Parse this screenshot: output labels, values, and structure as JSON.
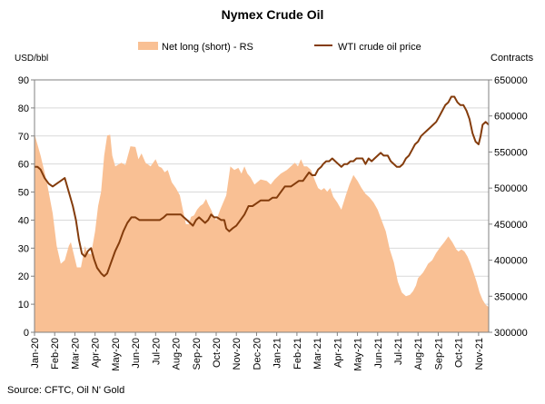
{
  "page": {
    "title": "Nymex Crude Oil",
    "source": "Source: CFTC, Oil N' Gold"
  },
  "chart_data": {
    "type": "area+line",
    "title": "Nymex Crude Oil",
    "ylabel_left": "USD/bbl",
    "ylabel_right": "Contracts",
    "ylim_left": [
      0,
      90
    ],
    "yticks_left": [
      0,
      10,
      20,
      30,
      40,
      50,
      60,
      70,
      80,
      90
    ],
    "ylim_right": [
      300000,
      650000
    ],
    "yticks_right": [
      300000,
      350000,
      400000,
      450000,
      500000,
      550000,
      600000,
      650000
    ],
    "x_ticks": [
      "Jan-20",
      "Feb-20",
      "Mar-20",
      "Apr-20",
      "May-20",
      "Jun-20",
      "Jul-20",
      "Aug-20",
      "Sep-20",
      "Oct-20",
      "Nov-20",
      "Dec-20",
      "Jan-21",
      "Feb-21",
      "Mar-21",
      "Apr-21",
      "May-21",
      "Jun-21",
      "Jul-21",
      "Aug-21",
      "Sep-21",
      "Oct-21",
      "Nov-21"
    ],
    "grid": true,
    "legend_position": "top",
    "series": [
      {
        "name": "Net long (short) - RS",
        "type": "area",
        "axis": "right",
        "color": "#f9c094",
        "points": [
          [
            0,
            575000
          ],
          [
            0.3,
            545000
          ],
          [
            0.6,
            510000
          ],
          [
            0.9,
            465000
          ],
          [
            1.1,
            420000
          ],
          [
            1.3,
            395000
          ],
          [
            1.5,
            400000
          ],
          [
            1.7,
            420000
          ],
          [
            1.8,
            425000
          ],
          [
            1.95,
            408000
          ],
          [
            2.1,
            390000
          ],
          [
            2.3,
            390000
          ],
          [
            2.5,
            420000
          ],
          [
            2.6,
            410000
          ],
          [
            2.8,
            408000
          ],
          [
            3.0,
            440000
          ],
          [
            3.15,
            475000
          ],
          [
            3.3,
            495000
          ],
          [
            3.45,
            545000
          ],
          [
            3.6,
            573000
          ],
          [
            3.75,
            574000
          ],
          [
            3.85,
            545000
          ],
          [
            4.0,
            530000
          ],
          [
            4.3,
            535000
          ],
          [
            4.5,
            532000
          ],
          [
            4.75,
            558000
          ],
          [
            5.0,
            557000
          ],
          [
            5.15,
            540000
          ],
          [
            5.3,
            548000
          ],
          [
            5.5,
            535000
          ],
          [
            5.75,
            530000
          ],
          [
            6.0,
            540000
          ],
          [
            6.15,
            530000
          ],
          [
            6.3,
            528000
          ],
          [
            6.45,
            522000
          ],
          [
            6.6,
            525000
          ],
          [
            6.8,
            508000
          ],
          [
            7.0,
            500000
          ],
          [
            7.2,
            490000
          ],
          [
            7.35,
            470000
          ],
          [
            7.5,
            450000
          ],
          [
            7.65,
            450000
          ],
          [
            7.75,
            460000
          ],
          [
            7.9,
            462000
          ],
          [
            8.05,
            470000
          ],
          [
            8.2,
            475000
          ],
          [
            8.35,
            478000
          ],
          [
            8.5,
            485000
          ],
          [
            8.6,
            478000
          ],
          [
            8.75,
            470000
          ],
          [
            8.9,
            460000
          ],
          [
            9.0,
            455000
          ],
          [
            9.2,
            470000
          ],
          [
            9.5,
            490000
          ],
          [
            9.7,
            530000
          ],
          [
            9.9,
            525000
          ],
          [
            10.1,
            528000
          ],
          [
            10.25,
            520000
          ],
          [
            10.4,
            530000
          ],
          [
            10.55,
            520000
          ],
          [
            10.7,
            515000
          ],
          [
            10.9,
            505000
          ],
          [
            11.2,
            512000
          ],
          [
            11.5,
            510000
          ],
          [
            11.7,
            505000
          ],
          [
            11.9,
            512000
          ],
          [
            12.2,
            520000
          ],
          [
            12.5,
            525000
          ],
          [
            12.7,
            530000
          ],
          [
            12.9,
            535000
          ],
          [
            13.05,
            530000
          ],
          [
            13.2,
            540000
          ],
          [
            13.35,
            530000
          ],
          [
            13.5,
            530000
          ],
          [
            13.7,
            525000
          ],
          [
            13.9,
            510000
          ],
          [
            14.05,
            500000
          ],
          [
            14.2,
            497000
          ],
          [
            14.35,
            500000
          ],
          [
            14.5,
            495000
          ],
          [
            14.65,
            500000
          ],
          [
            14.8,
            488000
          ],
          [
            15.0,
            480000
          ],
          [
            15.2,
            470000
          ],
          [
            15.4,
            488000
          ],
          [
            15.6,
            505000
          ],
          [
            15.8,
            518000
          ],
          [
            16.0,
            510000
          ],
          [
            16.2,
            500000
          ],
          [
            16.4,
            492000
          ],
          [
            16.6,
            487000
          ],
          [
            16.8,
            480000
          ],
          [
            17.0,
            470000
          ],
          [
            17.2,
            455000
          ],
          [
            17.4,
            440000
          ],
          [
            17.6,
            415000
          ],
          [
            17.8,
            397000
          ],
          [
            18.0,
            370000
          ],
          [
            18.2,
            355000
          ],
          [
            18.4,
            350000
          ],
          [
            18.6,
            352000
          ],
          [
            18.75,
            357000
          ],
          [
            18.9,
            365000
          ],
          [
            19.0,
            375000
          ],
          [
            19.1,
            378000
          ],
          [
            19.25,
            383000
          ],
          [
            19.4,
            390000
          ],
          [
            19.5,
            395000
          ],
          [
            19.7,
            400000
          ],
          [
            19.9,
            410000
          ],
          [
            20.1,
            418000
          ],
          [
            20.3,
            425000
          ],
          [
            20.5,
            433000
          ],
          [
            20.7,
            425000
          ],
          [
            20.9,
            415000
          ],
          [
            21.0,
            412000
          ],
          [
            21.15,
            415000
          ],
          [
            21.3,
            412000
          ],
          [
            21.45,
            405000
          ],
          [
            21.6,
            395000
          ],
          [
            21.75,
            383000
          ],
          [
            21.9,
            370000
          ],
          [
            22.05,
            355000
          ],
          [
            22.2,
            345000
          ],
          [
            22.35,
            338000
          ],
          [
            22.5,
            335000
          ]
        ]
      },
      {
        "name": "WTI crude oil price",
        "type": "line",
        "axis": "left",
        "color": "#843c0c",
        "points": [
          [
            0,
            59
          ],
          [
            0.15,
            59
          ],
          [
            0.3,
            58
          ],
          [
            0.5,
            55
          ],
          [
            0.7,
            53
          ],
          [
            0.9,
            52
          ],
          [
            1.1,
            53
          ],
          [
            1.3,
            54
          ],
          [
            1.5,
            55
          ],
          [
            1.7,
            50
          ],
          [
            1.9,
            45
          ],
          [
            2.05,
            40
          ],
          [
            2.2,
            33
          ],
          [
            2.35,
            28
          ],
          [
            2.5,
            27
          ],
          [
            2.65,
            29
          ],
          [
            2.8,
            30
          ],
          [
            2.95,
            26
          ],
          [
            3.1,
            23
          ],
          [
            3.3,
            21
          ],
          [
            3.45,
            20
          ],
          [
            3.6,
            21
          ],
          [
            3.8,
            25
          ],
          [
            4.0,
            29
          ],
          [
            4.2,
            32
          ],
          [
            4.4,
            36
          ],
          [
            4.6,
            39
          ],
          [
            4.8,
            41
          ],
          [
            5.0,
            41
          ],
          [
            5.2,
            40
          ],
          [
            5.35,
            40
          ],
          [
            5.5,
            40
          ],
          [
            5.7,
            40
          ],
          [
            5.9,
            40
          ],
          [
            6.05,
            40
          ],
          [
            6.2,
            40
          ],
          [
            6.4,
            41
          ],
          [
            6.55,
            42
          ],
          [
            6.75,
            42
          ],
          [
            6.9,
            42
          ],
          [
            7.1,
            42
          ],
          [
            7.25,
            42
          ],
          [
            7.4,
            41
          ],
          [
            7.55,
            40
          ],
          [
            7.7,
            39
          ],
          [
            7.85,
            38
          ],
          [
            8.0,
            40
          ],
          [
            8.15,
            41
          ],
          [
            8.3,
            40
          ],
          [
            8.45,
            39
          ],
          [
            8.6,
            40
          ],
          [
            8.75,
            42
          ],
          [
            8.9,
            41
          ],
          [
            9.05,
            41
          ],
          [
            9.25,
            40
          ],
          [
            9.4,
            40
          ],
          [
            9.5,
            37
          ],
          [
            9.65,
            36
          ],
          [
            9.8,
            37
          ],
          [
            10.0,
            38
          ],
          [
            10.2,
            40
          ],
          [
            10.4,
            42
          ],
          [
            10.6,
            45
          ],
          [
            10.8,
            45
          ],
          [
            11.0,
            46
          ],
          [
            11.2,
            47
          ],
          [
            11.4,
            47
          ],
          [
            11.6,
            47
          ],
          [
            11.8,
            48
          ],
          [
            12.0,
            48
          ],
          [
            12.2,
            50
          ],
          [
            12.4,
            52
          ],
          [
            12.55,
            52
          ],
          [
            12.7,
            52
          ],
          [
            12.9,
            53
          ],
          [
            13.1,
            54
          ],
          [
            13.3,
            54
          ],
          [
            13.5,
            56
          ],
          [
            13.6,
            57
          ],
          [
            13.75,
            56
          ],
          [
            13.9,
            56
          ],
          [
            14.05,
            58
          ],
          [
            14.2,
            59
          ],
          [
            14.3,
            60
          ],
          [
            14.45,
            61
          ],
          [
            14.6,
            61
          ],
          [
            14.75,
            62
          ],
          [
            14.9,
            61
          ],
          [
            15.05,
            60
          ],
          [
            15.2,
            59
          ],
          [
            15.35,
            60
          ],
          [
            15.5,
            60
          ],
          [
            15.65,
            61
          ],
          [
            15.8,
            61
          ],
          [
            15.95,
            62
          ],
          [
            16.1,
            62
          ],
          [
            16.25,
            62
          ],
          [
            16.4,
            60
          ],
          [
            16.55,
            62
          ],
          [
            16.7,
            61
          ],
          [
            16.85,
            62
          ],
          [
            17.0,
            63
          ],
          [
            17.15,
            64
          ],
          [
            17.3,
            63
          ],
          [
            17.5,
            63
          ],
          [
            17.65,
            61
          ],
          [
            17.8,
            60
          ],
          [
            17.95,
            59
          ],
          [
            18.1,
            59
          ],
          [
            18.25,
            60
          ],
          [
            18.4,
            62
          ],
          [
            18.55,
            63
          ],
          [
            18.7,
            65
          ],
          [
            18.85,
            67
          ],
          [
            19.0,
            68
          ],
          [
            19.15,
            70
          ],
          [
            19.3,
            71
          ],
          [
            19.45,
            72
          ],
          [
            19.6,
            73
          ],
          [
            19.75,
            74
          ],
          [
            19.9,
            75
          ],
          [
            20.05,
            77
          ],
          [
            20.2,
            79
          ],
          [
            20.35,
            81
          ],
          [
            20.5,
            82
          ],
          [
            20.65,
            84
          ],
          [
            20.8,
            84
          ],
          [
            20.95,
            82
          ],
          [
            21.1,
            81
          ],
          [
            21.25,
            81
          ],
          [
            21.4,
            79
          ],
          [
            21.55,
            76
          ],
          [
            21.7,
            71
          ],
          [
            21.85,
            68
          ],
          [
            22.0,
            67
          ],
          [
            22.1,
            70
          ],
          [
            22.2,
            74
          ],
          [
            22.35,
            75
          ],
          [
            22.5,
            74
          ]
        ]
      }
    ]
  }
}
